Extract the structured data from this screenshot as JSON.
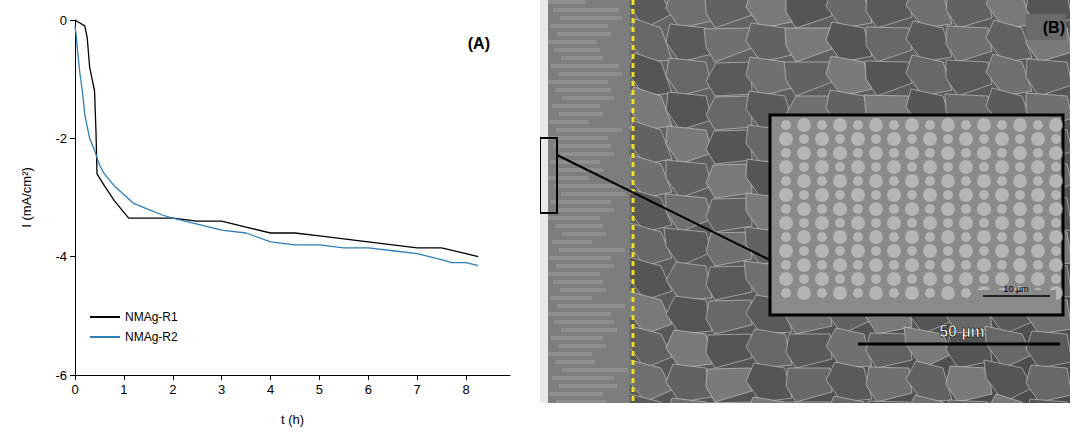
{
  "chart_data": {
    "type": "line",
    "title": "(A)",
    "x_label": "t (h)",
    "y_label": "I (mA/cm²)",
    "xlim": [
      0,
      8.9
    ],
    "xticks": [
      0,
      1,
      2,
      3,
      4,
      5,
      6,
      7,
      8
    ],
    "ylim": [
      -6,
      0
    ],
    "yticks": [
      0,
      -2,
      -4,
      -6
    ],
    "grid": false,
    "legend": "lower left",
    "series": [
      {
        "name": "NMAg-R1",
        "color": "#000000",
        "x": [
          0,
          0.1,
          0.2,
          0.25,
          0.3,
          0.35,
          0.4,
          0.43,
          0.45,
          0.6,
          0.8,
          1.0,
          1.1,
          1.5,
          2,
          2.5,
          3,
          3.5,
          4,
          4.5,
          5,
          5.5,
          6,
          6.5,
          7,
          7.5,
          8,
          8.25
        ],
        "values": [
          0,
          -0.05,
          -0.1,
          -0.3,
          -0.8,
          -1.0,
          -1.2,
          -1.9,
          -2.6,
          -2.8,
          -3.05,
          -3.25,
          -3.35,
          -3.35,
          -3.35,
          -3.4,
          -3.4,
          -3.5,
          -3.6,
          -3.6,
          -3.65,
          -3.7,
          -3.75,
          -3.8,
          -3.85,
          -3.85,
          -3.95,
          -4.0
        ]
      },
      {
        "name": "NMAg-R2",
        "color": "#2e7fb8",
        "x": [
          0,
          0.03,
          0.05,
          0.1,
          0.15,
          0.2,
          0.3,
          0.4,
          0.5,
          0.6,
          0.8,
          1.0,
          1.2,
          1.5,
          1.8,
          2,
          2.5,
          3,
          3.5,
          4,
          4.5,
          5,
          5.5,
          6,
          6.5,
          7,
          7.5,
          7.7,
          8,
          8.25
        ],
        "values": [
          -0.1,
          -0.3,
          -0.5,
          -0.9,
          -1.2,
          -1.6,
          -2.0,
          -2.2,
          -2.45,
          -2.6,
          -2.8,
          -2.95,
          -3.1,
          -3.2,
          -3.3,
          -3.35,
          -3.45,
          -3.55,
          -3.6,
          -3.75,
          -3.8,
          -3.8,
          -3.85,
          -3.85,
          -3.9,
          -3.95,
          -4.05,
          -4.1,
          -4.1,
          -4.15
        ]
      }
    ]
  },
  "image_panel": {
    "label": "(B)",
    "inset_scale_bar": "10 µm",
    "scale_bar": "50 µm"
  }
}
